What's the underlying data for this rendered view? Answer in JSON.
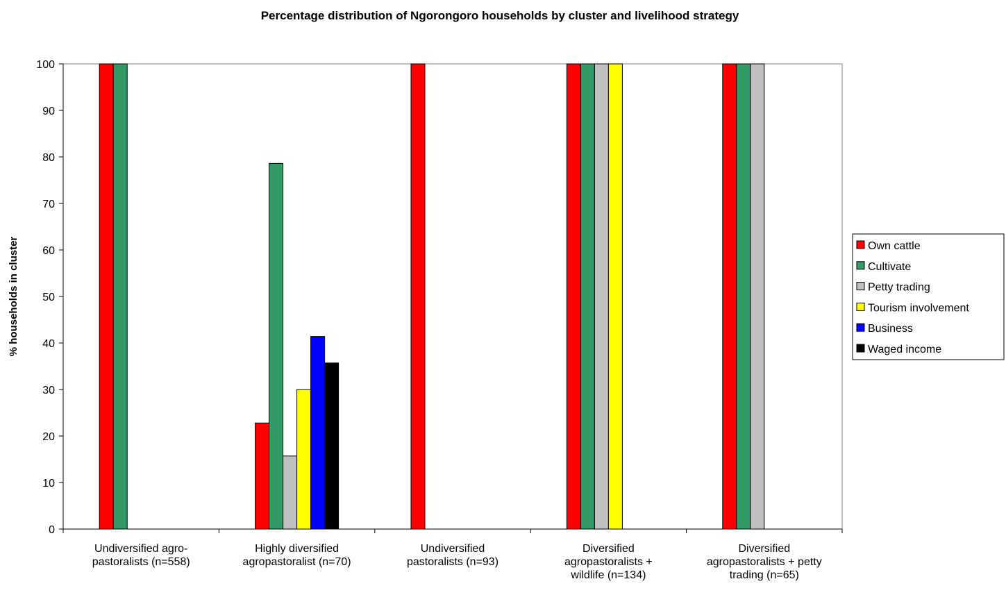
{
  "chart_data": {
    "type": "bar",
    "title": "Percentage distribution of Ngorongoro households by cluster and livelihood strategy",
    "y_label": "% households in cluster",
    "categories": [
      "Undiversified agro-\npastoralists (n=558)",
      "Highly diversified\nagropastoralist (n=70)",
      "Undiversified\npastoralists (n=93)",
      "Diversified\nagropastoralists +\nwildlife (n=134)",
      "Diversified\nagropastoralists + petty\ntrading (n=65)"
    ],
    "series": [
      {
        "name": "Own cattle",
        "color": "#ff0000",
        "values": [
          100,
          22.8,
          100,
          100,
          100
        ]
      },
      {
        "name": "Cultivate",
        "color": "#339966",
        "values": [
          100,
          78.6,
          0,
          100,
          100
        ]
      },
      {
        "name": "Petty trading",
        "color": "#c0c0c0",
        "values": [
          0,
          15.7,
          0,
          100,
          100
        ]
      },
      {
        "name": "Tourism involvement",
        "color": "#ffff00",
        "values": [
          0,
          30,
          0,
          100,
          0
        ]
      },
      {
        "name": "Business",
        "color": "#0000ff",
        "values": [
          0,
          41.4,
          0,
          0,
          0
        ]
      },
      {
        "name": "Waged income",
        "color": "#000000",
        "values": [
          0,
          35.7,
          0,
          0,
          0
        ]
      }
    ],
    "ylim": [
      0,
      100
    ],
    "yticks": [
      0,
      10,
      20,
      30,
      40,
      50,
      60,
      70,
      80,
      90,
      100
    ],
    "grid": false,
    "legend": "right"
  }
}
